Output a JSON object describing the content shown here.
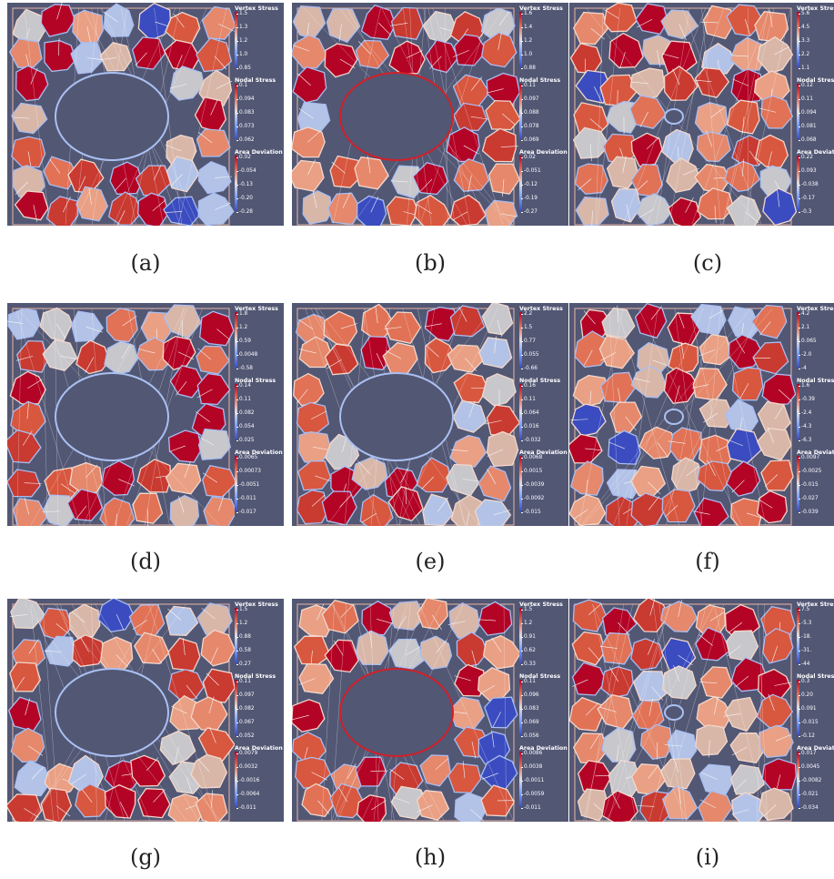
{
  "panels": [
    {
      "id": "a",
      "caption": "(a)",
      "hole": "large",
      "legend": [
        {
          "title": "Vertex Stress",
          "ticks": [
            "1.5",
            "1.3",
            "1.2",
            "1.0",
            "0.85"
          ]
        },
        {
          "title": "Nodal Stress",
          "ticks": [
            "0.1",
            "0.094",
            "0.083",
            "0.073",
            "0.062"
          ]
        },
        {
          "title": "Area Deviation",
          "ticks": [
            "0.02",
            "-0.054",
            "-0.13",
            "-0.20",
            "-0.28"
          ]
        }
      ]
    },
    {
      "id": "b",
      "caption": "(b)",
      "hole": "large",
      "legend": [
        {
          "title": "Vertex Stress",
          "ticks": [
            "1.6",
            "1.4",
            "1.2",
            "1.0",
            "0.88"
          ]
        },
        {
          "title": "Nodal Stress",
          "ticks": [
            "0.11",
            "0.097",
            "0.088",
            "0.078",
            "0.069"
          ]
        },
        {
          "title": "Area Deviation",
          "ticks": [
            "0.02",
            "-0.051",
            "-0.12",
            "-0.19",
            "-0.27"
          ]
        }
      ]
    },
    {
      "id": "c",
      "caption": "(c)",
      "hole": "tiny",
      "legend": [
        {
          "title": "Vertex Stress",
          "ticks": [
            "5.6",
            "4.5",
            "3.3",
            "2.2",
            "1.1"
          ]
        },
        {
          "title": "Nodal Stress",
          "ticks": [
            "0.12",
            "0.11",
            "0.094",
            "0.081",
            "0.068"
          ]
        },
        {
          "title": "Area Deviation",
          "ticks": [
            "0.22",
            "0.093",
            "-0.038",
            "-0.17",
            "-0.3"
          ]
        }
      ]
    },
    {
      "id": "d",
      "caption": "(d)",
      "hole": "large",
      "legend": [
        {
          "title": "Vertex Stress",
          "ticks": [
            "1.8",
            "1.2",
            "0.59",
            "0.0048",
            "-0.58"
          ]
        },
        {
          "title": "Nodal Stress",
          "ticks": [
            "0.14",
            "0.11",
            "0.082",
            "0.054",
            "0.025"
          ]
        },
        {
          "title": "Area Deviation",
          "ticks": [
            "0.0065",
            "0.00073",
            "-0.0051",
            "-0.011",
            "-0.017"
          ]
        }
      ]
    },
    {
      "id": "e",
      "caption": "(e)",
      "hole": "large",
      "legend": [
        {
          "title": "Vertex Stress",
          "ticks": [
            "2.2",
            "1.5",
            "0.77",
            "0.055",
            "-0.66"
          ]
        },
        {
          "title": "Nodal Stress",
          "ticks": [
            "0.16",
            "0.11",
            "0.064",
            "0.016",
            "-0.032"
          ]
        },
        {
          "title": "Area Deviation",
          "ticks": [
            "0.0068",
            "0.0015",
            "-0.0039",
            "-0.0092",
            "-0.015"
          ]
        }
      ]
    },
    {
      "id": "f",
      "caption": "(f)",
      "hole": "tiny",
      "legend": [
        {
          "title": "Vertex Stress",
          "ticks": [
            "4.2",
            "2.1",
            "0.065",
            "-2.0",
            "-4"
          ]
        },
        {
          "title": "Nodal Stress",
          "ticks": [
            "1.6",
            "-0.39",
            "-2.4",
            "-4.3",
            "-6.3"
          ]
        },
        {
          "title": "Area Deviation",
          "ticks": [
            "0.0097",
            "-0.0025",
            "-0.015",
            "-0.027",
            "-0.039"
          ]
        }
      ]
    },
    {
      "id": "g",
      "caption": "(g)",
      "hole": "large",
      "legend": [
        {
          "title": "Vertex Stress",
          "ticks": [
            "1.5",
            "1.2",
            "0.88",
            "0.58",
            "0.27"
          ]
        },
        {
          "title": "Nodal Stress",
          "ticks": [
            "0.11",
            "0.097",
            "0.082",
            "0.067",
            "0.052"
          ]
        },
        {
          "title": "Area Deviation",
          "ticks": [
            "0.0079",
            "0.0032",
            "-0.0016",
            "-0.0064",
            "-0.011"
          ]
        }
      ]
    },
    {
      "id": "h",
      "caption": "(h)",
      "hole": "large",
      "legend": [
        {
          "title": "Vertex Stress",
          "ticks": [
            "1.5",
            "1.2",
            "0.91",
            "0.62",
            "0.33"
          ]
        },
        {
          "title": "Nodal Stress",
          "ticks": [
            "0.11",
            "0.096",
            "0.083",
            "0.069",
            "0.056"
          ]
        },
        {
          "title": "Area Deviation",
          "ticks": [
            "0.0086",
            "0.0038",
            "-0.0011",
            "-0.0059",
            "-0.011"
          ]
        }
      ]
    },
    {
      "id": "i",
      "caption": "(i)",
      "hole": "tiny",
      "legend": [
        {
          "title": "Vertex Stress",
          "ticks": [
            "7.5",
            "-5.3",
            "-18.",
            "-31.",
            "-44"
          ]
        },
        {
          "title": "Nodal Stress",
          "ticks": [
            "0.3",
            "0.20",
            "0.091",
            "-0.015",
            "-0.12"
          ]
        },
        {
          "title": "Area Deviation",
          "ticks": [
            "0.017",
            "0.0045",
            "-0.0082",
            "-0.021",
            "-0.034"
          ]
        }
      ]
    }
  ],
  "colors": {
    "background": "#525774",
    "mesh_white": "#f2f2f2",
    "red_dark": "#b40426",
    "blue_dark": "#3b4cc0"
  }
}
